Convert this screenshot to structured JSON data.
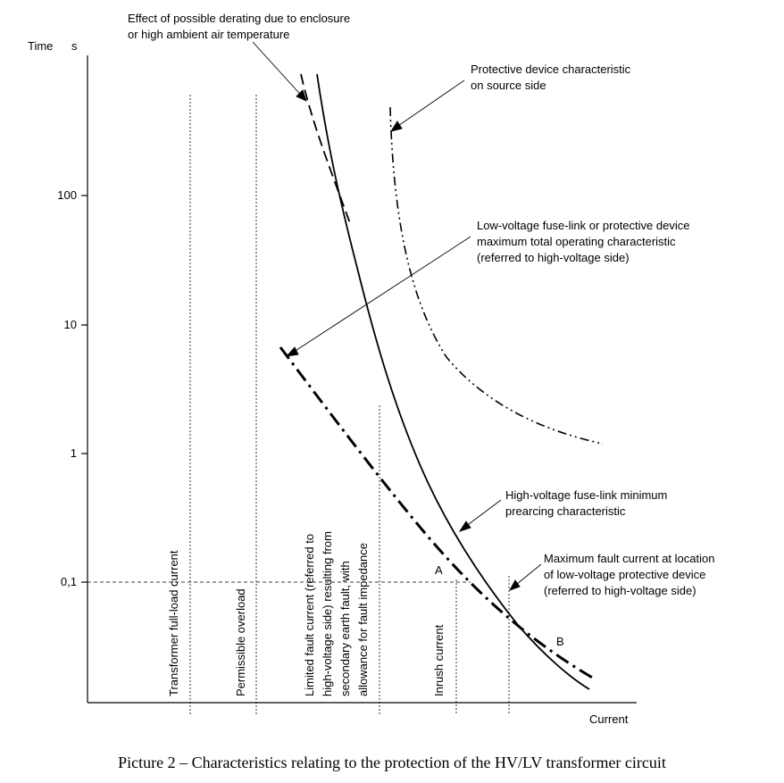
{
  "axes": {
    "y_title": "Time",
    "y_unit": "s",
    "x_title": "Current",
    "y_ticks": [
      "100",
      "10",
      "1",
      "0,1"
    ]
  },
  "vertical_labels": {
    "full_load": "Transformer full-load current",
    "overload": "Permissible overload",
    "limited_fault": [
      "Limited fault current (referred to",
      "high-voltage side) resulting from",
      "secondary earth fault, with",
      "allowance for fault impedance"
    ],
    "inrush": "Inrush current"
  },
  "annotations": {
    "derating": [
      "Effect of possible derating due to enclosure",
      "or high ambient air temperature"
    ],
    "protective_source": [
      "Protective device characteristic",
      "on source side"
    ],
    "lv_fuse": [
      "Low-voltage fuse-link or protective device",
      "maximum total operating characteristic",
      "(referred to high-voltage side)"
    ],
    "hv_fuse": [
      "High-voltage fuse-link minimum",
      "prearcing characteristic"
    ],
    "max_fault": [
      "Maximum fault current at location",
      "of low-voltage protective device",
      "(referred to high-voltage side)"
    ]
  },
  "points": {
    "a": "A",
    "b": "B"
  },
  "caption": "Picture 2 – Characteristics relating to the protection of the HV/LV transformer circuit"
}
